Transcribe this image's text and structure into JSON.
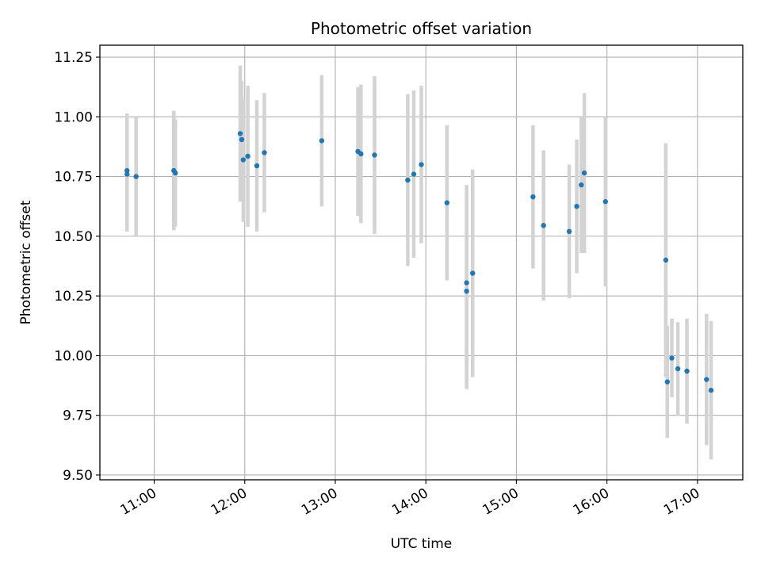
{
  "chart_data": {
    "type": "scatter",
    "title": "Photometric offset variation",
    "xlabel": "UTC time",
    "ylabel": "Photometric offset",
    "x_ticks": [
      "11:00",
      "12:00",
      "13:00",
      "14:00",
      "15:00",
      "16:00",
      "17:00"
    ],
    "y_ticks": [
      "9.50",
      "9.75",
      "10.00",
      "10.25",
      "10.50",
      "10.75",
      "11.00",
      "11.25"
    ],
    "xlim": [
      "10:24",
      "17:30"
    ],
    "ylim": [
      9.48,
      11.3
    ],
    "grid": true,
    "marker_color": "#1f77b4",
    "errorbar_color": "#d3d3d3",
    "points": [
      {
        "x": "10:42",
        "y": 10.775,
        "err": 0.24
      },
      {
        "x": "10:42",
        "y": 10.76,
        "err": 0.24
      },
      {
        "x": "10:48",
        "y": 10.75,
        "err": 0.25
      },
      {
        "x": "11:13",
        "y": 10.775,
        "err": 0.25
      },
      {
        "x": "11:14",
        "y": 10.765,
        "err": 0.225
      },
      {
        "x": "11:57",
        "y": 10.93,
        "err": 0.285
      },
      {
        "x": "11:58",
        "y": 10.905,
        "err": 0.245
      },
      {
        "x": "11:59",
        "y": 10.82,
        "err": 0.26
      },
      {
        "x": "12:02",
        "y": 10.835,
        "err": 0.295
      },
      {
        "x": "12:08",
        "y": 10.795,
        "err": 0.275
      },
      {
        "x": "12:13",
        "y": 10.85,
        "err": 0.25
      },
      {
        "x": "12:51",
        "y": 10.9,
        "err": 0.275
      },
      {
        "x": "13:15",
        "y": 10.855,
        "err": 0.27
      },
      {
        "x": "13:17",
        "y": 10.845,
        "err": 0.29
      },
      {
        "x": "13:26",
        "y": 10.84,
        "err": 0.33
      },
      {
        "x": "13:48",
        "y": 10.735,
        "err": 0.36
      },
      {
        "x": "13:52",
        "y": 10.76,
        "err": 0.35
      },
      {
        "x": "13:57",
        "y": 10.8,
        "err": 0.33
      },
      {
        "x": "14:14",
        "y": 10.64,
        "err": 0.325
      },
      {
        "x": "14:27",
        "y": 10.305,
        "err": 0.41
      },
      {
        "x": "14:27",
        "y": 10.27,
        "err": 0.41
      },
      {
        "x": "14:31",
        "y": 10.345,
        "err": 0.435
      },
      {
        "x": "15:11",
        "y": 10.665,
        "err": 0.3
      },
      {
        "x": "15:18",
        "y": 10.545,
        "err": 0.315
      },
      {
        "x": "15:35",
        "y": 10.52,
        "err": 0.28
      },
      {
        "x": "15:40",
        "y": 10.625,
        "err": 0.28
      },
      {
        "x": "15:43",
        "y": 10.715,
        "err": 0.285
      },
      {
        "x": "15:45",
        "y": 10.765,
        "err": 0.335
      },
      {
        "x": "15:59",
        "y": 10.645,
        "err": 0.355
      },
      {
        "x": "16:39",
        "y": 10.4,
        "err": 0.49
      },
      {
        "x": "16:40",
        "y": 9.89,
        "err": 0.235
      },
      {
        "x": "16:43",
        "y": 9.99,
        "err": 0.165
      },
      {
        "x": "16:47",
        "y": 9.945,
        "err": 0.195
      },
      {
        "x": "16:53",
        "y": 9.935,
        "err": 0.22
      },
      {
        "x": "17:06",
        "y": 9.9,
        "err": 0.275
      },
      {
        "x": "17:09",
        "y": 9.855,
        "err": 0.29
      }
    ]
  }
}
